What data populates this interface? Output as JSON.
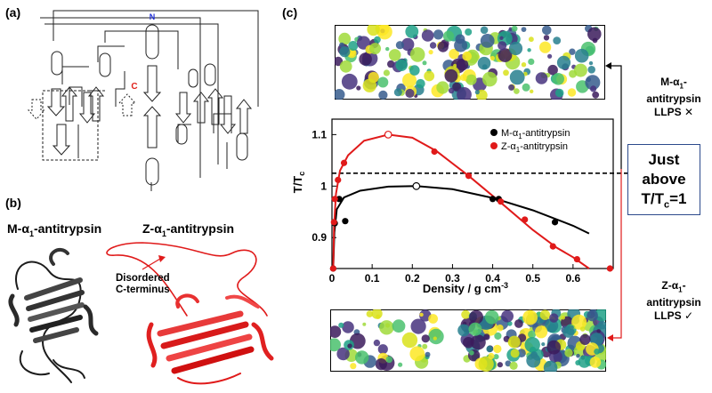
{
  "panels": {
    "a": {
      "label": "(a)",
      "n_terminus": "N",
      "c_terminus": "C",
      "n_color": "#1f2fd6",
      "c_color": "#e0201a"
    },
    "b": {
      "label": "(b)",
      "m_title_prefix": "M-α",
      "m_title_sub": "1",
      "m_title_suffix": "-antitrypsin",
      "z_title_prefix": "Z-α",
      "z_title_sub": "1",
      "z_title_suffix": "-antitrypsin",
      "annotation_line1": "Disordered",
      "annotation_line2": "C-terminus",
      "m_color": "#1c1c1c",
      "z_color": "#e01a1a"
    },
    "c": {
      "label": "(c)",
      "right_top_line1_prefix": "M-α",
      "right_top_line1_sub": "1",
      "right_top_line1_suffix": "-",
      "right_top_line2": "antitrypsin",
      "right_top_line3": "LLPS ✕",
      "right_box_line1": "Just",
      "right_box_line2": "above",
      "right_box_line3": "T/T",
      "right_box_line3_sub": "c",
      "right_box_line3_suffix": "=1",
      "right_bottom_line1_prefix": "Z-α",
      "right_bottom_line1_sub": "1",
      "right_bottom_line1_suffix": "-",
      "right_bottom_line2": "antitrypsin",
      "right_bottom_line3": "LLPS ✓",
      "box_border_color": "#2c4a8c"
    }
  },
  "chart_data": {
    "type": "line",
    "xlabel_prefix": "Density / g cm",
    "xlabel_sup": "-3",
    "ylabel_prefix": "T/T",
    "ylabel_sub": "c",
    "xlim": [
      0,
      0.7
    ],
    "ylim": [
      0.84,
      1.13
    ],
    "x_ticks": [
      0,
      0.1,
      0.2,
      0.3,
      0.4,
      0.5,
      0.6
    ],
    "x_tick_labels": [
      "0",
      "0.1",
      "0.2",
      "0.3",
      "0.4",
      "0.5",
      "0.6"
    ],
    "y_ticks": [
      0.9,
      1.0,
      1.1
    ],
    "y_tick_labels": [
      "0.9",
      "1",
      "1.1"
    ],
    "reference_line_y": 1.025,
    "legend_position": "top-right",
    "series": [
      {
        "name_prefix": "M-α",
        "name_sub": "1",
        "name_suffix": "-antitrypsin",
        "color": "#000000",
        "points": [
          [
            0.003,
            0.84
          ],
          [
            0.007,
            0.928
          ],
          [
            0.018,
            0.975
          ],
          [
            0.033,
            0.932
          ],
          [
            0.21,
            1.0
          ],
          [
            0.4,
            0.975
          ],
          [
            0.415,
            0.975
          ],
          [
            0.555,
            0.93
          ]
        ],
        "critical_point": [
          0.21,
          1.0
        ],
        "curve": [
          [
            0.003,
            0.84
          ],
          [
            0.006,
            0.91
          ],
          [
            0.012,
            0.955
          ],
          [
            0.03,
            0.978
          ],
          [
            0.07,
            0.991
          ],
          [
            0.14,
            0.999
          ],
          [
            0.21,
            1.0
          ],
          [
            0.3,
            0.994
          ],
          [
            0.4,
            0.977
          ],
          [
            0.5,
            0.953
          ],
          [
            0.6,
            0.923
          ],
          [
            0.64,
            0.908
          ]
        ]
      },
      {
        "name_prefix": "Z-α",
        "name_sub": "1",
        "name_suffix": "-antitrypsin",
        "color": "#e01a1a",
        "points": [
          [
            0.003,
            0.84
          ],
          [
            0.005,
            0.93
          ],
          [
            0.007,
            0.975
          ],
          [
            0.015,
            1.012
          ],
          [
            0.03,
            1.045
          ],
          [
            0.255,
            1.067
          ],
          [
            0.34,
            1.02
          ],
          [
            0.42,
            0.97
          ],
          [
            0.48,
            0.935
          ],
          [
            0.55,
            0.883
          ],
          [
            0.61,
            0.858
          ],
          [
            0.692,
            0.84
          ]
        ],
        "critical_point": [
          0.14,
          1.1
        ],
        "curve": [
          [
            0.003,
            0.84
          ],
          [
            0.005,
            0.92
          ],
          [
            0.01,
            0.985
          ],
          [
            0.02,
            1.03
          ],
          [
            0.04,
            1.06
          ],
          [
            0.08,
            1.088
          ],
          [
            0.14,
            1.1
          ],
          [
            0.2,
            1.094
          ],
          [
            0.26,
            1.068
          ],
          [
            0.34,
            1.02
          ],
          [
            0.42,
            0.968
          ],
          [
            0.5,
            0.915
          ],
          [
            0.56,
            0.88
          ],
          [
            0.6,
            0.862
          ],
          [
            0.64,
            0.84
          ]
        ]
      }
    ]
  }
}
